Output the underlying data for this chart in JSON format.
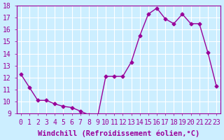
{
  "x": [
    0,
    1,
    2,
    3,
    4,
    5,
    6,
    7,
    8,
    9,
    10,
    11,
    12,
    13,
    14,
    15,
    16,
    17,
    18,
    19,
    20,
    21,
    22,
    23
  ],
  "y": [
    12.3,
    11.2,
    10.1,
    10.1,
    9.8,
    9.6,
    9.5,
    9.2,
    8.9,
    8.6,
    12.1,
    12.1,
    12.1,
    13.3,
    15.5,
    17.3,
    17.8,
    16.9,
    16.5,
    17.3,
    16.5,
    16.5,
    14.1,
    11.3
  ],
  "xlim": [
    -0.5,
    23.5
  ],
  "ylim": [
    9,
    18
  ],
  "yticks": [
    9,
    10,
    11,
    12,
    13,
    14,
    15,
    16,
    17,
    18
  ],
  "xticks": [
    0,
    1,
    2,
    3,
    4,
    5,
    6,
    7,
    8,
    9,
    10,
    11,
    12,
    13,
    14,
    15,
    16,
    17,
    18,
    19,
    20,
    21,
    22,
    23
  ],
  "xlabel": "Windchill (Refroidissement éolien,°C)",
  "line_color": "#990099",
  "marker": "D",
  "marker_size": 2.5,
  "background_color": "#cceeff",
  "grid_color": "#ffffff",
  "tick_label_size": 7,
  "xlabel_size": 7.5
}
